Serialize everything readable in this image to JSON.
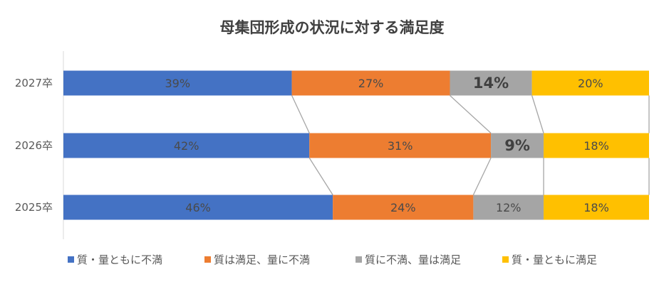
{
  "chart_data": {
    "type": "bar",
    "orientation": "horizontal",
    "stacked": "100%",
    "title": "母集団形成の状況に対する満足度",
    "categories": [
      "2027卒",
      "2026卒",
      "2025卒"
    ],
    "series": [
      {
        "name": "質・量ともに不満",
        "color": "#4472C4",
        "values": [
          39,
          42,
          46
        ],
        "labels": [
          "39%",
          "42%",
          "46%"
        ]
      },
      {
        "name": "質は満足、量に不満",
        "color": "#ED7D31",
        "values": [
          27,
          31,
          24
        ],
        "labels": [
          "27%",
          "31%",
          "24%"
        ]
      },
      {
        "name": "質に不満、量は満足",
        "color": "#A5A5A5",
        "values": [
          14,
          9,
          12
        ],
        "labels": [
          "14%",
          "9%",
          "12%"
        ]
      },
      {
        "name": "質・量ともに満足",
        "color": "#FFC000",
        "values": [
          20,
          18,
          18
        ],
        "labels": [
          "20%",
          "18%",
          "18%"
        ]
      }
    ],
    "emphasized_labels": [
      {
        "series": 2,
        "category": 0
      },
      {
        "series": 2,
        "category": 1
      }
    ],
    "series_lines": true,
    "legend_position": "bottom",
    "xlim": [
      0,
      100
    ],
    "grid": false
  }
}
